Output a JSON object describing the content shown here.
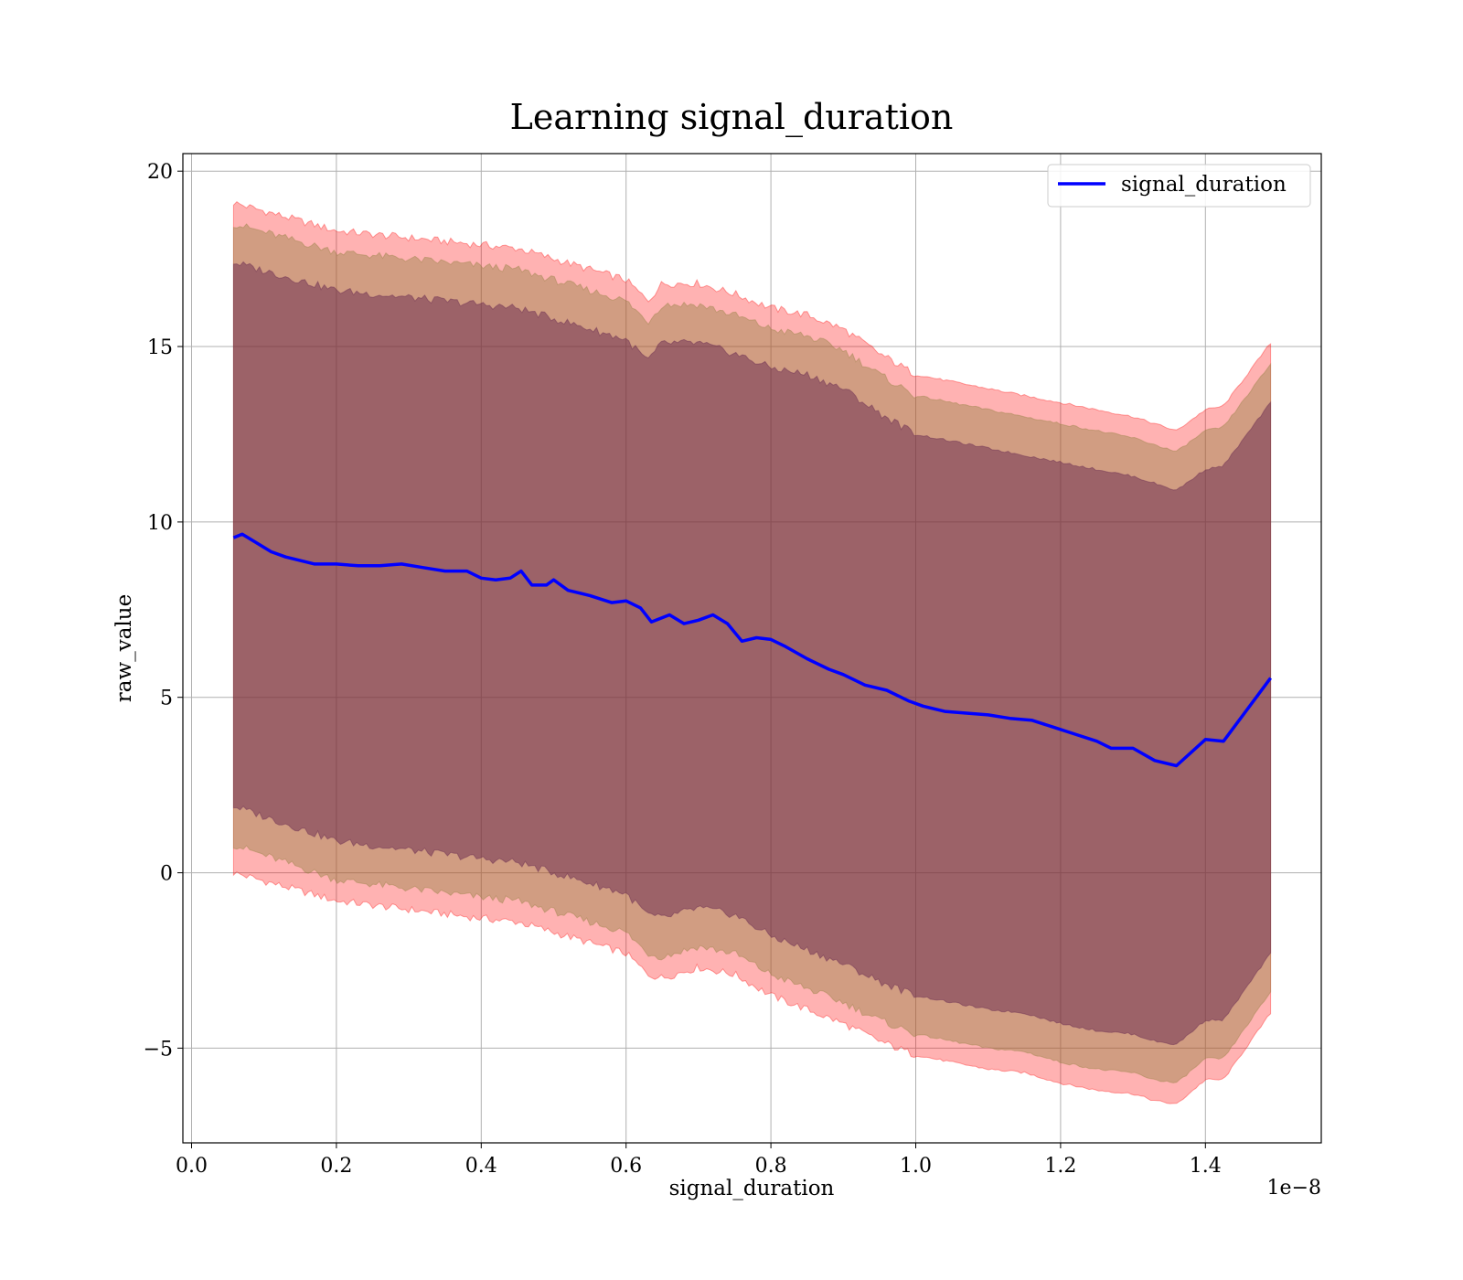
{
  "chart_data": {
    "type": "line",
    "title": "Learning signal_duration",
    "xlabel": "signal_duration",
    "ylabel": "raw_value",
    "x_offset_label": "1e−8",
    "xlim": [
      -0.012,
      1.56
    ],
    "ylim": [
      -7.7,
      20.5
    ],
    "xticks": [
      0.0,
      0.2,
      0.4,
      0.6,
      0.8,
      1.0,
      1.2,
      1.4
    ],
    "xtick_labels": [
      "0.0",
      "0.2",
      "0.4",
      "0.6",
      "0.8",
      "1.0",
      "1.2",
      "1.4"
    ],
    "yticks": [
      -5,
      0,
      5,
      10,
      15,
      20
    ],
    "ytick_labels": [
      "−5",
      "0",
      "5",
      "10",
      "15",
      "20"
    ],
    "grid": true,
    "legend": {
      "position": "top-right",
      "entries": [
        "signal_duration"
      ]
    },
    "series": [
      {
        "name": "signal_duration",
        "color": "#0000ff",
        "x": [
          0.058,
          0.07,
          0.09,
          0.11,
          0.13,
          0.15,
          0.17,
          0.2,
          0.23,
          0.26,
          0.29,
          0.32,
          0.35,
          0.38,
          0.4,
          0.42,
          0.44,
          0.455,
          0.47,
          0.49,
          0.5,
          0.52,
          0.55,
          0.58,
          0.6,
          0.62,
          0.635,
          0.66,
          0.68,
          0.7,
          0.72,
          0.74,
          0.76,
          0.78,
          0.8,
          0.82,
          0.85,
          0.88,
          0.9,
          0.93,
          0.96,
          0.99,
          1.01,
          1.04,
          1.07,
          1.1,
          1.13,
          1.16,
          1.19,
          1.22,
          1.25,
          1.27,
          1.3,
          1.33,
          1.36,
          1.4,
          1.425,
          1.49
        ],
        "values": [
          9.55,
          9.65,
          9.4,
          9.15,
          9.0,
          8.9,
          8.8,
          8.8,
          8.75,
          8.75,
          8.8,
          8.7,
          8.6,
          8.6,
          8.4,
          8.35,
          8.4,
          8.6,
          8.2,
          8.2,
          8.35,
          8.05,
          7.9,
          7.7,
          7.75,
          7.55,
          7.15,
          7.35,
          7.1,
          7.2,
          7.35,
          7.1,
          6.6,
          6.7,
          6.65,
          6.45,
          6.1,
          5.8,
          5.65,
          5.35,
          5.2,
          4.9,
          4.75,
          4.6,
          4.55,
          4.5,
          4.4,
          4.35,
          4.15,
          3.95,
          3.75,
          3.55,
          3.55,
          3.2,
          3.05,
          3.8,
          3.75,
          5.55
        ]
      }
    ],
    "bands": [
      {
        "color": "#ff0000",
        "opacity": 0.3,
        "x": [
          0.058,
          0.2,
          0.4,
          0.45,
          0.55,
          0.6,
          0.63,
          0.65,
          0.7,
          0.75,
          0.8,
          0.85,
          0.9,
          0.95,
          1.0,
          1.05,
          1.1,
          1.15,
          1.2,
          1.25,
          1.3,
          1.33,
          1.36,
          1.4,
          1.425,
          1.49
        ],
        "lower": [
          0.0,
          -0.8,
          -1.3,
          -1.4,
          -2.0,
          -2.3,
          -2.9,
          -3.0,
          -2.7,
          -2.9,
          -3.5,
          -3.9,
          -4.3,
          -4.8,
          -5.2,
          -5.4,
          -5.6,
          -5.7,
          -6.0,
          -6.2,
          -6.3,
          -6.5,
          -6.6,
          -5.9,
          -5.9,
          -4.0
        ],
        "upper": [
          19.1,
          18.3,
          17.9,
          17.8,
          17.2,
          16.9,
          16.3,
          16.8,
          16.8,
          16.5,
          16.1,
          15.9,
          15.5,
          14.8,
          14.2,
          14.0,
          13.8,
          13.6,
          13.4,
          13.2,
          13.0,
          12.8,
          12.6,
          13.2,
          13.3,
          15.1
        ]
      },
      {
        "color": "#8c7d3a",
        "opacity": 0.4,
        "x": [
          0.058,
          0.2,
          0.4,
          0.45,
          0.55,
          0.6,
          0.63,
          0.65,
          0.7,
          0.75,
          0.8,
          0.85,
          0.9,
          0.95,
          1.0,
          1.05,
          1.1,
          1.15,
          1.2,
          1.25,
          1.3,
          1.33,
          1.36,
          1.4,
          1.425,
          1.49
        ],
        "lower": [
          0.8,
          -0.2,
          -0.7,
          -0.8,
          -1.4,
          -1.7,
          -2.3,
          -2.4,
          -2.1,
          -2.3,
          -2.9,
          -3.3,
          -3.7,
          -4.2,
          -4.6,
          -4.8,
          -5.0,
          -5.1,
          -5.4,
          -5.6,
          -5.7,
          -5.9,
          -6.0,
          -5.3,
          -5.3,
          -3.4
        ],
        "upper": [
          18.5,
          17.7,
          17.3,
          17.2,
          16.6,
          16.3,
          15.7,
          16.2,
          16.2,
          15.9,
          15.5,
          15.3,
          14.9,
          14.2,
          13.6,
          13.4,
          13.2,
          13.0,
          12.8,
          12.6,
          12.4,
          12.2,
          12.0,
          12.6,
          12.7,
          14.5
        ]
      },
      {
        "color": "#5a1a4a",
        "opacity": 0.45,
        "x": [
          0.058,
          0.2,
          0.4,
          0.45,
          0.55,
          0.6,
          0.63,
          0.65,
          0.7,
          0.75,
          0.8,
          0.85,
          0.9,
          0.95,
          1.0,
          1.05,
          1.1,
          1.15,
          1.2,
          1.25,
          1.3,
          1.33,
          1.36,
          1.4,
          1.425,
          1.49
        ],
        "lower": [
          1.9,
          0.9,
          0.4,
          0.3,
          -0.3,
          -0.6,
          -1.2,
          -1.3,
          -1.0,
          -1.2,
          -1.8,
          -2.2,
          -2.6,
          -3.1,
          -3.5,
          -3.7,
          -3.9,
          -4.0,
          -4.3,
          -4.5,
          -4.6,
          -4.8,
          -4.9,
          -4.2,
          -4.2,
          -2.3
        ],
        "upper": [
          17.4,
          16.6,
          16.2,
          16.1,
          15.5,
          15.2,
          14.6,
          15.1,
          15.1,
          14.8,
          14.4,
          14.2,
          13.8,
          13.1,
          12.5,
          12.3,
          12.1,
          11.9,
          11.7,
          11.5,
          11.3,
          11.1,
          10.9,
          11.5,
          11.6,
          13.4
        ]
      }
    ]
  }
}
